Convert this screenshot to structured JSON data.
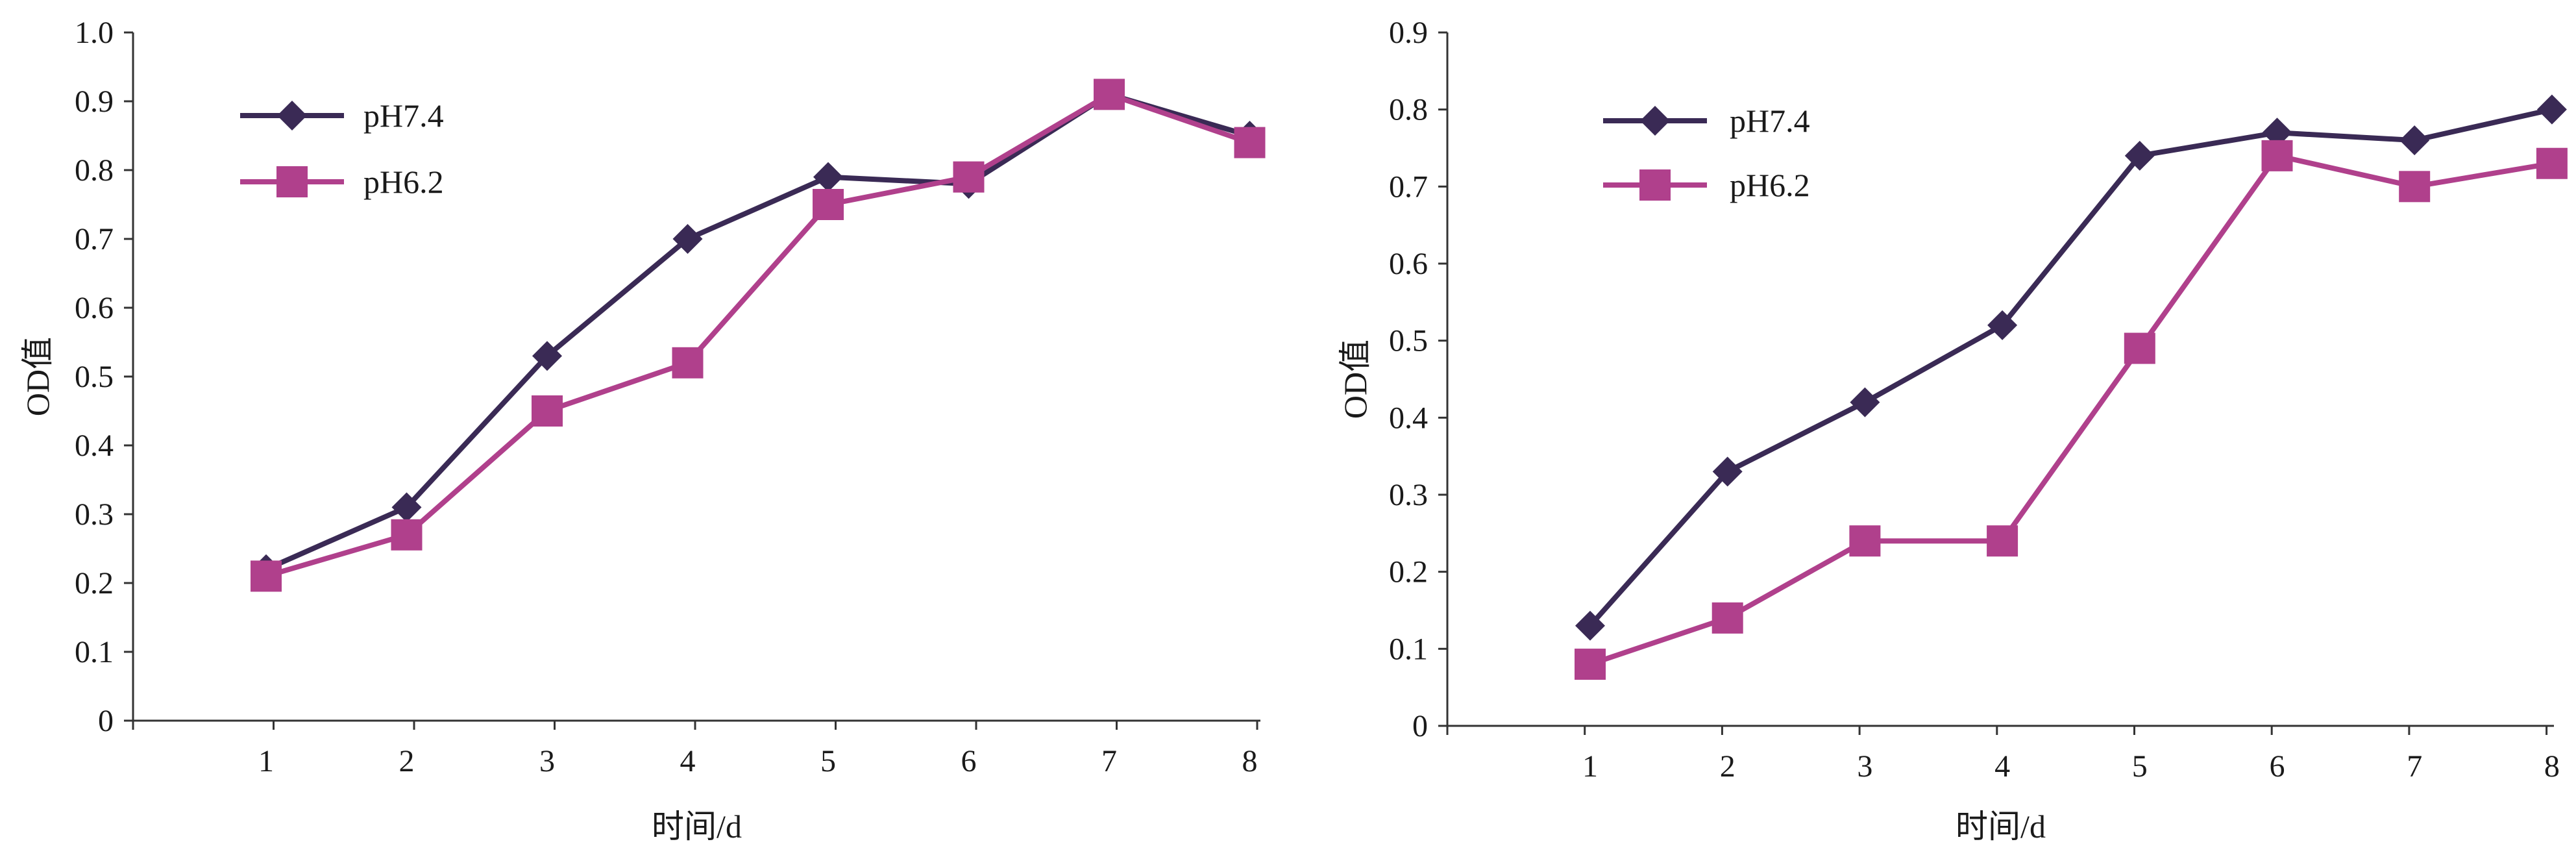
{
  "colors": {
    "pH74": "#3a2a55",
    "pH62": "#b0408c",
    "axis": "#333333"
  },
  "chart_data": [
    {
      "type": "line",
      "xlabel": "时间/d",
      "ylabel": "OD值",
      "x": [
        1,
        2,
        3,
        4,
        5,
        6,
        7,
        8
      ],
      "ylim": [
        0,
        1.0
      ],
      "yticks": [
        "0",
        "0.1",
        "0.2",
        "0.3",
        "0.4",
        "0.5",
        "0.6",
        "0.7",
        "0.8",
        "0.9",
        "1.0"
      ],
      "xticks": [
        "1",
        "2",
        "3",
        "4",
        "5",
        "6",
        "7",
        "8"
      ],
      "grid": false,
      "legend": "top-left",
      "series": [
        {
          "name": "pH7.4",
          "marker": "diamond",
          "values": [
            0.22,
            0.31,
            0.53,
            0.7,
            0.79,
            0.78,
            0.91,
            0.85
          ]
        },
        {
          "name": "pH6.2",
          "marker": "square",
          "values": [
            0.21,
            0.27,
            0.45,
            0.52,
            0.75,
            0.79,
            0.91,
            0.84
          ]
        }
      ]
    },
    {
      "type": "line",
      "xlabel": "时间/d",
      "ylabel": "OD值",
      "x": [
        1,
        2,
        3,
        4,
        5,
        6,
        7,
        8
      ],
      "ylim": [
        0,
        0.9
      ],
      "yticks": [
        "0",
        "0.1",
        "0.2",
        "0.3",
        "0.4",
        "0.5",
        "0.6",
        "0.7",
        "0.8",
        "0.9"
      ],
      "xticks": [
        "1",
        "2",
        "3",
        "4",
        "5",
        "6",
        "7",
        "8"
      ],
      "grid": false,
      "legend": "top-left",
      "series": [
        {
          "name": "pH7.4",
          "marker": "diamond",
          "values": [
            0.13,
            0.33,
            0.42,
            0.52,
            0.74,
            0.77,
            0.76,
            0.8
          ]
        },
        {
          "name": "pH6.2",
          "marker": "square",
          "values": [
            0.08,
            0.14,
            0.24,
            0.24,
            0.49,
            0.74,
            0.7,
            0.73
          ]
        }
      ]
    }
  ]
}
